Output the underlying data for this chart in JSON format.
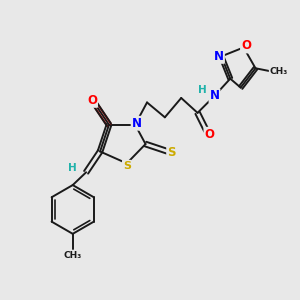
{
  "bg_color": "#e8e8e8",
  "atom_colors": {
    "C": "#1a1a1a",
    "N": "#0000ff",
    "O": "#ff0000",
    "S": "#ccaa00",
    "H": "#20b2aa"
  },
  "bond_color": "#1a1a1a"
}
